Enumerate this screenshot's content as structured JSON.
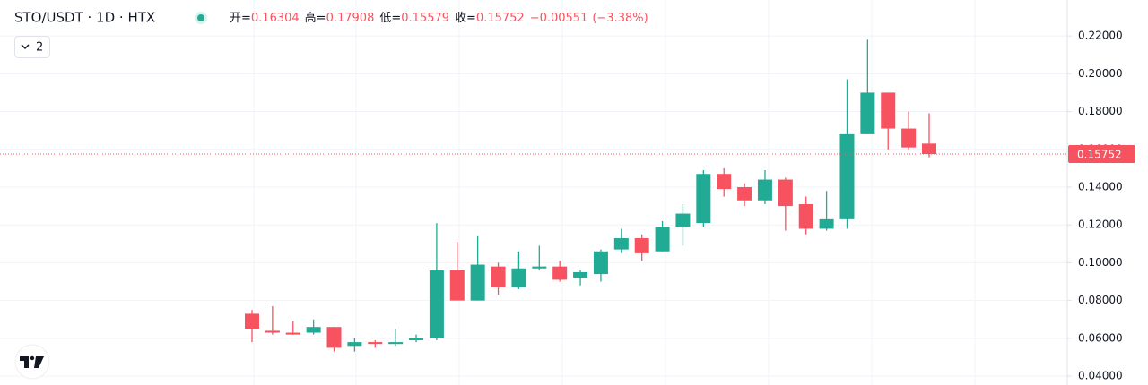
{
  "chart_data": {
    "type": "candlestick",
    "title": "STO/USDT · 1D · HTX",
    "ohlc_labels": [
      "开=",
      "高=",
      "低=",
      "收="
    ],
    "change": "−0.00551",
    "change_pct": "(−3.38%)",
    "indicator_count": "2",
    "up_color": "#22ab94",
    "down_color": "#f7525f",
    "open": [
      0.073,
      0.064,
      0.063,
      0.063,
      0.066,
      0.056,
      0.058,
      0.057,
      0.059,
      0.06,
      0.096,
      0.08,
      0.098,
      0.087,
      0.097,
      0.098,
      0.092,
      0.094,
      0.107,
      0.113,
      0.106,
      0.119,
      0.121,
      0.147,
      0.14,
      0.133,
      0.144,
      0.131,
      0.118,
      0.123,
      0.168,
      0.19,
      0.171,
      0.16304
    ],
    "high": [
      0.075,
      0.077,
      0.069,
      0.07,
      0.066,
      0.06,
      0.059,
      0.065,
      0.062,
      0.121,
      0.111,
      0.114,
      0.1,
      0.106,
      0.109,
      0.101,
      0.096,
      0.107,
      0.118,
      0.115,
      0.122,
      0.131,
      0.149,
      0.15,
      0.142,
      0.149,
      0.145,
      0.135,
      0.138,
      0.197,
      0.218,
      0.19,
      0.18,
      0.17908
    ],
    "low": [
      0.058,
      0.062,
      0.062,
      0.062,
      0.053,
      0.053,
      0.055,
      0.056,
      0.058,
      0.059,
      0.08,
      0.08,
      0.083,
      0.086,
      0.096,
      0.09,
      0.088,
      0.09,
      0.105,
      0.101,
      0.106,
      0.109,
      0.119,
      0.135,
      0.13,
      0.131,
      0.117,
      0.115,
      0.117,
      0.118,
      0.168,
      0.16,
      0.16,
      0.15579
    ],
    "close": [
      0.065,
      0.063,
      0.062,
      0.066,
      0.055,
      0.058,
      0.057,
      0.058,
      0.06,
      0.096,
      0.08,
      0.099,
      0.087,
      0.097,
      0.098,
      0.091,
      0.095,
      0.106,
      0.113,
      0.105,
      0.119,
      0.126,
      0.147,
      0.139,
      0.133,
      0.144,
      0.13,
      0.118,
      0.123,
      0.168,
      0.19,
      0.171,
      0.161,
      0.15752
    ],
    "ylim": [
      0.0353,
      0.239
    ],
    "yticks": [
      {
        "value": 0.04,
        "label": "0.04000"
      },
      {
        "value": 0.06,
        "label": "0.06000"
      },
      {
        "value": 0.08,
        "label": "0.08000"
      },
      {
        "value": 0.1,
        "label": "0.10000"
      },
      {
        "value": 0.12,
        "label": "0.12000"
      },
      {
        "value": 0.14,
        "label": "0.14000"
      },
      {
        "value": 0.16,
        "label": "0.16000"
      },
      {
        "value": 0.18,
        "label": "0.18000"
      },
      {
        "value": 0.2,
        "label": "0.20000"
      },
      {
        "value": 0.22,
        "label": "0.22000"
      }
    ],
    "grid": true
  }
}
